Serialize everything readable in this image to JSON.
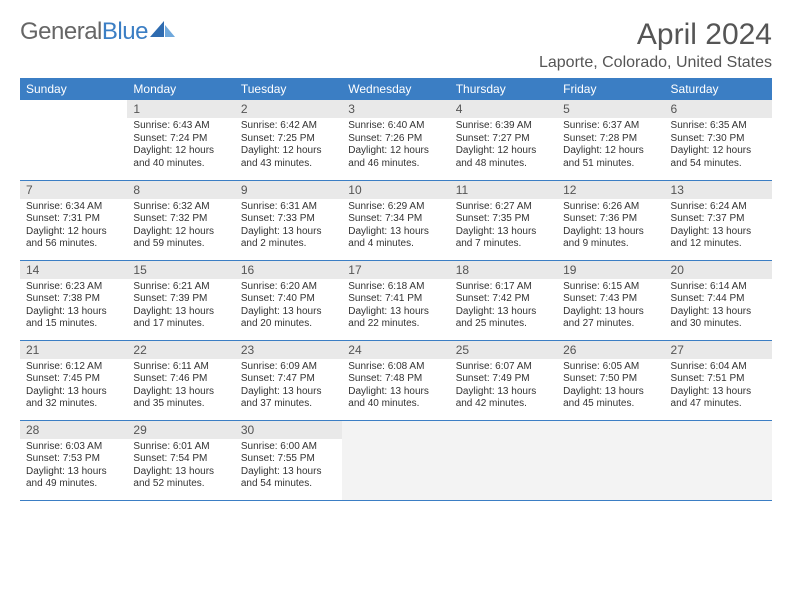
{
  "brand": {
    "part1": "General",
    "part2": "Blue"
  },
  "title": "April 2024",
  "location": "Laporte, Colorado, United States",
  "colors": {
    "header_bg": "#3b7ec4",
    "header_fg": "#ffffff",
    "daynum_bg": "#e9e9e9",
    "text": "#333333",
    "rule": "#3b7ec4",
    "trailing_bg": "#f3f3f3",
    "page_bg": "#ffffff"
  },
  "typography": {
    "title_fontsize": 30,
    "location_fontsize": 16,
    "dow_fontsize": 12,
    "daynum_fontsize": 12,
    "body_fontsize": 10
  },
  "layout": {
    "columns": 7,
    "rows": 5,
    "first_weekday_index": 1,
    "days_in_month": 30,
    "trailing_cells": 4
  },
  "weekdays": [
    "Sunday",
    "Monday",
    "Tuesday",
    "Wednesday",
    "Thursday",
    "Friday",
    "Saturday"
  ],
  "days": [
    {
      "n": 1,
      "sunrise": "6:43 AM",
      "sunset": "7:24 PM",
      "daylight": "12 hours and 40 minutes."
    },
    {
      "n": 2,
      "sunrise": "6:42 AM",
      "sunset": "7:25 PM",
      "daylight": "12 hours and 43 minutes."
    },
    {
      "n": 3,
      "sunrise": "6:40 AM",
      "sunset": "7:26 PM",
      "daylight": "12 hours and 46 minutes."
    },
    {
      "n": 4,
      "sunrise": "6:39 AM",
      "sunset": "7:27 PM",
      "daylight": "12 hours and 48 minutes."
    },
    {
      "n": 5,
      "sunrise": "6:37 AM",
      "sunset": "7:28 PM",
      "daylight": "12 hours and 51 minutes."
    },
    {
      "n": 6,
      "sunrise": "6:35 AM",
      "sunset": "7:30 PM",
      "daylight": "12 hours and 54 minutes."
    },
    {
      "n": 7,
      "sunrise": "6:34 AM",
      "sunset": "7:31 PM",
      "daylight": "12 hours and 56 minutes."
    },
    {
      "n": 8,
      "sunrise": "6:32 AM",
      "sunset": "7:32 PM",
      "daylight": "12 hours and 59 minutes."
    },
    {
      "n": 9,
      "sunrise": "6:31 AM",
      "sunset": "7:33 PM",
      "daylight": "13 hours and 2 minutes."
    },
    {
      "n": 10,
      "sunrise": "6:29 AM",
      "sunset": "7:34 PM",
      "daylight": "13 hours and 4 minutes."
    },
    {
      "n": 11,
      "sunrise": "6:27 AM",
      "sunset": "7:35 PM",
      "daylight": "13 hours and 7 minutes."
    },
    {
      "n": 12,
      "sunrise": "6:26 AM",
      "sunset": "7:36 PM",
      "daylight": "13 hours and 9 minutes."
    },
    {
      "n": 13,
      "sunrise": "6:24 AM",
      "sunset": "7:37 PM",
      "daylight": "13 hours and 12 minutes."
    },
    {
      "n": 14,
      "sunrise": "6:23 AM",
      "sunset": "7:38 PM",
      "daylight": "13 hours and 15 minutes."
    },
    {
      "n": 15,
      "sunrise": "6:21 AM",
      "sunset": "7:39 PM",
      "daylight": "13 hours and 17 minutes."
    },
    {
      "n": 16,
      "sunrise": "6:20 AM",
      "sunset": "7:40 PM",
      "daylight": "13 hours and 20 minutes."
    },
    {
      "n": 17,
      "sunrise": "6:18 AM",
      "sunset": "7:41 PM",
      "daylight": "13 hours and 22 minutes."
    },
    {
      "n": 18,
      "sunrise": "6:17 AM",
      "sunset": "7:42 PM",
      "daylight": "13 hours and 25 minutes."
    },
    {
      "n": 19,
      "sunrise": "6:15 AM",
      "sunset": "7:43 PM",
      "daylight": "13 hours and 27 minutes."
    },
    {
      "n": 20,
      "sunrise": "6:14 AM",
      "sunset": "7:44 PM",
      "daylight": "13 hours and 30 minutes."
    },
    {
      "n": 21,
      "sunrise": "6:12 AM",
      "sunset": "7:45 PM",
      "daylight": "13 hours and 32 minutes."
    },
    {
      "n": 22,
      "sunrise": "6:11 AM",
      "sunset": "7:46 PM",
      "daylight": "13 hours and 35 minutes."
    },
    {
      "n": 23,
      "sunrise": "6:09 AM",
      "sunset": "7:47 PM",
      "daylight": "13 hours and 37 minutes."
    },
    {
      "n": 24,
      "sunrise": "6:08 AM",
      "sunset": "7:48 PM",
      "daylight": "13 hours and 40 minutes."
    },
    {
      "n": 25,
      "sunrise": "6:07 AM",
      "sunset": "7:49 PM",
      "daylight": "13 hours and 42 minutes."
    },
    {
      "n": 26,
      "sunrise": "6:05 AM",
      "sunset": "7:50 PM",
      "daylight": "13 hours and 45 minutes."
    },
    {
      "n": 27,
      "sunrise": "6:04 AM",
      "sunset": "7:51 PM",
      "daylight": "13 hours and 47 minutes."
    },
    {
      "n": 28,
      "sunrise": "6:03 AM",
      "sunset": "7:53 PM",
      "daylight": "13 hours and 49 minutes."
    },
    {
      "n": 29,
      "sunrise": "6:01 AM",
      "sunset": "7:54 PM",
      "daylight": "13 hours and 52 minutes."
    },
    {
      "n": 30,
      "sunrise": "6:00 AM",
      "sunset": "7:55 PM",
      "daylight": "13 hours and 54 minutes."
    }
  ],
  "labels": {
    "sunrise": "Sunrise:",
    "sunset": "Sunset:",
    "daylight": "Daylight:"
  }
}
